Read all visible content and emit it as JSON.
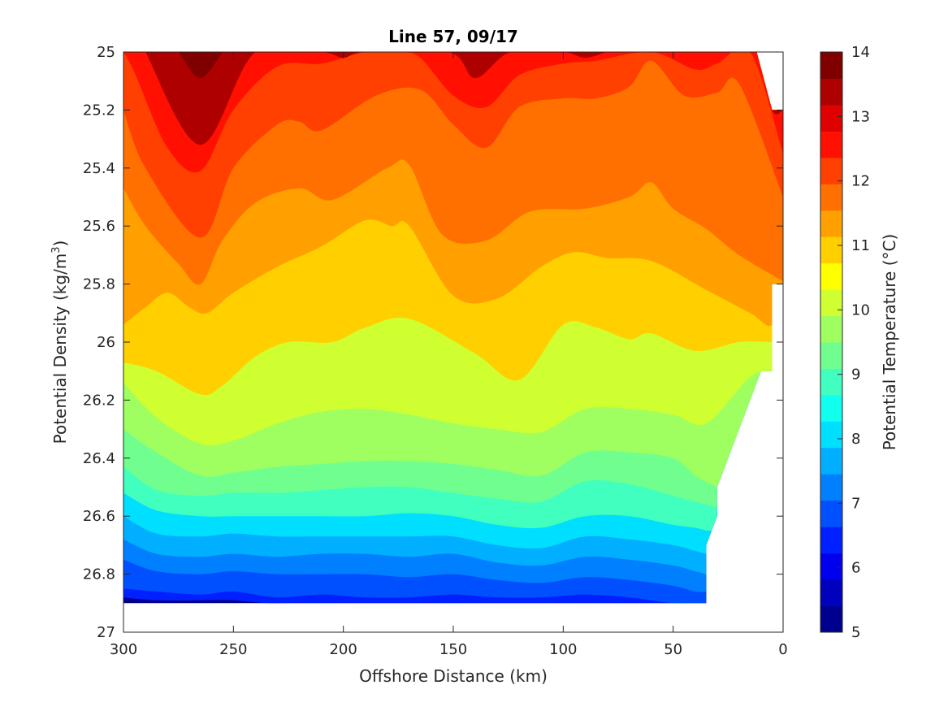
{
  "chart_data": {
    "type": "filled-contour",
    "title": "Line 57, 09/17",
    "xlabel": "Offshore Distance (km)",
    "ylabel_main": "Potential Density (kg/m",
    "ylabel_sup": "3",
    "ylabel_close": ")",
    "colorbar_label": "Potential Temperature (°C)",
    "xlim": [
      300,
      0
    ],
    "ylim": [
      27,
      25
    ],
    "x_reversed": true,
    "y_reversed": true,
    "xticks": [
      300,
      250,
      200,
      150,
      100,
      50,
      0
    ],
    "yticks": [
      25,
      25.2,
      25.4,
      25.6,
      25.8,
      26,
      26.2,
      26.4,
      26.6,
      26.8,
      27
    ],
    "ytick_labels": [
      "25",
      "25.2",
      "25.4",
      "25.6",
      "25.8",
      "26",
      "26.2",
      "26.4",
      "26.6",
      "26.8",
      "27"
    ],
    "colorbar_limits": [
      5,
      14
    ],
    "colorbar_ticks": [
      5,
      6,
      7,
      8,
      9,
      10,
      11,
      12,
      13,
      14
    ],
    "contour_interval": 0.5,
    "levels": [
      5,
      5.5,
      6,
      6.5,
      7,
      7.5,
      8,
      8.5,
      9,
      9.5,
      10,
      10.5,
      11,
      11.5,
      12,
      12.5,
      13,
      13.5
    ],
    "colormap": [
      "#00008f",
      "#0000bf",
      "#0000ef",
      "#0020ff",
      "#0050ff",
      "#0080ff",
      "#00afff",
      "#00dfff",
      "#10ffef",
      "#40ffbf",
      "#70ff8f",
      "#9fff60",
      "#cfff30",
      "#ffff00",
      "#ffcf00",
      "#ff9f00",
      "#ff7000",
      "#ff4000",
      "#ff1000",
      "#df0000",
      "#af0000",
      "#800000"
    ],
    "isotherms": [
      {
        "temperature": 13.5,
        "x": [
          275,
          265,
          255
        ],
        "density": [
          25.0,
          25.09,
          25.0
        ]
      },
      {
        "temperature": 13,
        "x": [
          290,
          265,
          240,
          210,
          200,
          190,
          152,
          140,
          124,
          100,
          90,
          80,
          75,
          12,
          5,
          0
        ],
        "density": [
          25.0,
          25.32,
          25.0,
          25.0,
          25.02,
          25.0,
          25.0,
          25.09,
          25.0,
          25.0,
          25.02,
          25.0,
          25.0,
          25.0,
          25.2,
          25.2
        ]
      },
      {
        "temperature": 12.5,
        "x": [
          300,
          295,
          280,
          265,
          250,
          230,
          210,
          190,
          175,
          165,
          150,
          135,
          120,
          100,
          85,
          60,
          40,
          30,
          15,
          0
        ],
        "density": [
          25.0,
          25.07,
          25.33,
          25.41,
          25.2,
          25.05,
          25.04,
          25.0,
          25.0,
          25.02,
          25.15,
          25.19,
          25.08,
          25.04,
          25.03,
          25.0,
          25.06,
          25.04,
          25.0,
          25.35
        ]
      },
      {
        "temperature": 12,
        "x": [
          300,
          290,
          265,
          250,
          230,
          220,
          210,
          185,
          165,
          150,
          135,
          120,
          100,
          85,
          70,
          60,
          45,
          30,
          20,
          0
        ],
        "density": [
          25.2,
          25.4,
          25.64,
          25.4,
          25.25,
          25.24,
          25.27,
          25.15,
          25.13,
          25.25,
          25.33,
          25.19,
          25.16,
          25.16,
          25.12,
          25.03,
          25.15,
          25.14,
          25.11,
          25.5
        ]
      },
      {
        "temperature": 11.5,
        "x": [
          300,
          290,
          275,
          265,
          255,
          240,
          220,
          205,
          180,
          170,
          155,
          135,
          115,
          90,
          70,
          60,
          50,
          35,
          20,
          0
        ],
        "density": [
          25.47,
          25.6,
          25.73,
          25.8,
          25.65,
          25.52,
          25.47,
          25.51,
          25.4,
          25.39,
          25.63,
          25.65,
          25.55,
          25.54,
          25.5,
          25.45,
          25.54,
          25.61,
          25.7,
          25.79
        ]
      },
      {
        "temperature": 11,
        "x": [
          300,
          290,
          280,
          270,
          262,
          250,
          230,
          210,
          190,
          178,
          170,
          150,
          130,
          110,
          95,
          80,
          60,
          35,
          15,
          5,
          0
        ],
        "density": [
          25.94,
          25.88,
          25.83,
          25.88,
          25.9,
          25.83,
          25.74,
          25.67,
          25.58,
          25.6,
          25.6,
          25.84,
          25.85,
          25.74,
          25.69,
          25.71,
          25.72,
          25.82,
          25.9,
          25.94,
          25.8
        ]
      },
      {
        "temperature": 10.5,
        "x": [
          300,
          285,
          265,
          255,
          240,
          225,
          205,
          190,
          170,
          140,
          120,
          100,
          85,
          70,
          60,
          40,
          20,
          5
        ],
        "density": [
          26.07,
          26.1,
          26.18,
          26.15,
          26.05,
          26.0,
          26.0,
          25.95,
          25.92,
          26.04,
          26.13,
          25.94,
          25.95,
          25.99,
          25.97,
          26.03,
          26.0,
          26.0
        ]
      },
      {
        "temperature": 10,
        "x": [
          300,
          285,
          265,
          250,
          230,
          210,
          190,
          170,
          150,
          130,
          110,
          90,
          70,
          50,
          35,
          15,
          5
        ],
        "density": [
          26.14,
          26.26,
          26.35,
          26.34,
          26.28,
          26.24,
          26.23,
          26.25,
          26.28,
          26.3,
          26.31,
          26.23,
          26.23,
          26.25,
          26.28,
          26.12,
          26.1
        ]
      },
      {
        "temperature": 9.5,
        "x": [
          300,
          285,
          265,
          250,
          230,
          210,
          190,
          170,
          150,
          130,
          110,
          90,
          70,
          50,
          40,
          30
        ],
        "density": [
          26.3,
          26.38,
          26.46,
          26.45,
          26.43,
          26.42,
          26.41,
          26.41,
          26.42,
          26.44,
          26.46,
          26.38,
          26.38,
          26.4,
          26.46,
          26.5
        ]
      },
      {
        "temperature": 9,
        "x": [
          300,
          285,
          265,
          250,
          230,
          210,
          190,
          170,
          150,
          130,
          110,
          90,
          70,
          50,
          40,
          30
        ],
        "density": [
          26.43,
          26.51,
          26.53,
          26.52,
          26.52,
          26.51,
          26.5,
          26.5,
          26.52,
          26.54,
          26.55,
          26.48,
          26.49,
          26.53,
          26.55,
          26.57
        ]
      },
      {
        "temperature": 8.5,
        "x": [
          300,
          285,
          265,
          250,
          230,
          210,
          190,
          170,
          150,
          130,
          110,
          90,
          70,
          50,
          40,
          35
        ],
        "density": [
          26.52,
          26.58,
          26.6,
          26.6,
          26.6,
          26.6,
          26.6,
          26.59,
          26.6,
          26.63,
          26.64,
          26.6,
          26.6,
          26.63,
          26.64,
          26.65
        ]
      },
      {
        "temperature": 8,
        "x": [
          300,
          285,
          265,
          250,
          230,
          210,
          190,
          170,
          150,
          130,
          110,
          90,
          70,
          50,
          40,
          35
        ],
        "density": [
          26.6,
          26.66,
          26.67,
          26.66,
          26.67,
          26.67,
          26.67,
          26.67,
          26.67,
          26.7,
          26.71,
          26.67,
          26.68,
          26.7,
          26.72,
          26.73
        ]
      },
      {
        "temperature": 7.5,
        "x": [
          300,
          285,
          265,
          250,
          230,
          210,
          190,
          170,
          150,
          130,
          110,
          90,
          70,
          50,
          40,
          35
        ],
        "density": [
          26.68,
          26.73,
          26.74,
          26.73,
          26.74,
          26.73,
          26.73,
          26.74,
          26.73,
          26.76,
          26.77,
          26.74,
          26.75,
          26.77,
          26.79,
          26.8
        ]
      },
      {
        "temperature": 7,
        "x": [
          300,
          285,
          265,
          250,
          230,
          210,
          190,
          170,
          150,
          130,
          110,
          90,
          70,
          50,
          40,
          35
        ],
        "density": [
          26.75,
          26.79,
          26.8,
          26.79,
          26.8,
          26.8,
          26.8,
          26.81,
          26.8,
          26.82,
          26.83,
          26.81,
          26.82,
          26.84,
          26.86,
          26.86
        ]
      },
      {
        "temperature": 6.5,
        "x": [
          300,
          285,
          265,
          250,
          230,
          210,
          190,
          170,
          150,
          130,
          110,
          90,
          70,
          50,
          40,
          35
        ],
        "density": [
          26.85,
          26.86,
          26.87,
          26.86,
          26.88,
          26.87,
          26.88,
          26.88,
          26.87,
          26.88,
          26.88,
          26.87,
          26.88,
          26.9,
          26.9,
          26.9
        ]
      },
      {
        "temperature": 6,
        "x": [
          300,
          285,
          265,
          250,
          235,
          225
        ],
        "density": [
          26.88,
          26.89,
          26.89,
          26.89,
          26.9,
          26.9
        ]
      }
    ],
    "data_boundary": {
      "x": [
        300,
        12,
        5,
        0,
        0,
        5,
        5,
        10,
        30,
        30,
        35,
        35,
        300
      ],
      "density": [
        25.0,
        25.0,
        25.2,
        25.2,
        25.8,
        25.8,
        26.1,
        26.1,
        26.5,
        26.6,
        26.7,
        26.9,
        26.9
      ]
    }
  }
}
